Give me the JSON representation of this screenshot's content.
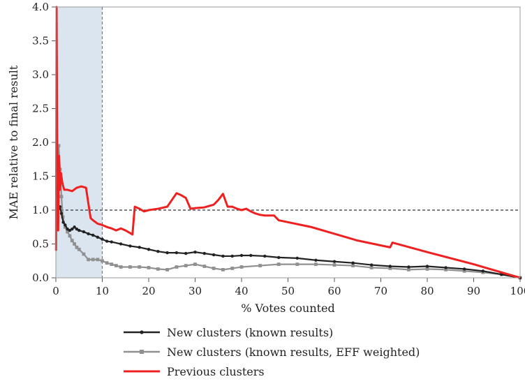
{
  "chart_data": {
    "type": "line",
    "xlabel": "% Votes counted",
    "ylabel": "MAE relative to final result",
    "xlim": [
      0,
      100
    ],
    "ylim": [
      0,
      4.0
    ],
    "x_ticks": [
      0,
      10,
      20,
      30,
      40,
      50,
      60,
      70,
      80,
      90,
      100
    ],
    "y_ticks": [
      0.0,
      0.5,
      1.0,
      1.5,
      2.0,
      2.5,
      3.0,
      3.5,
      4.0
    ],
    "y_tick_labels": [
      "0.0",
      "0.5",
      "1.0",
      "1.5",
      "2.0",
      "2.5",
      "3.0",
      "3.5",
      "4.0"
    ],
    "x_tick_labels": [
      "0",
      "10",
      "20",
      "30",
      "40",
      "50",
      "60",
      "70",
      "80",
      "90",
      "100"
    ],
    "shaded_region": {
      "x_from": 0,
      "x_to": 10
    },
    "reference_line": {
      "y": 1.0,
      "style": "dashed"
    },
    "vertical_reference": {
      "x": 10,
      "style": "dashed"
    },
    "grid": false,
    "legend_position": "bottom",
    "series": [
      {
        "name": "New clusters (known results)",
        "color": "#222222",
        "marker": "circle",
        "x": [
          0.3,
          0.6,
          0.9,
          1.2,
          1.6,
          2.0,
          2.5,
          3.0,
          3.5,
          4.0,
          4.5,
          5.0,
          6.0,
          7.0,
          8.0,
          9.0,
          10.0,
          11.0,
          12.0,
          14.0,
          16.0,
          18.0,
          20.0,
          22.0,
          24.0,
          26.0,
          28.0,
          30.0,
          32.0,
          34.0,
          36.0,
          38.0,
          40.0,
          42.0,
          45.0,
          48.0,
          52.0,
          56.0,
          60.0,
          64.0,
          68.0,
          72.0,
          76.0,
          80.0,
          84.0,
          88.0,
          92.0,
          96.0,
          100.0
        ],
        "values": [
          0.9,
          1.02,
          1.05,
          0.95,
          0.82,
          0.78,
          0.72,
          0.7,
          0.72,
          0.75,
          0.72,
          0.7,
          0.68,
          0.65,
          0.63,
          0.6,
          0.57,
          0.54,
          0.53,
          0.5,
          0.47,
          0.45,
          0.42,
          0.39,
          0.37,
          0.37,
          0.36,
          0.38,
          0.36,
          0.34,
          0.32,
          0.32,
          0.33,
          0.33,
          0.32,
          0.3,
          0.29,
          0.26,
          0.24,
          0.22,
          0.19,
          0.17,
          0.16,
          0.17,
          0.15,
          0.13,
          0.1,
          0.05,
          0.0
        ]
      },
      {
        "name": "New clusters (known results, EFF weighted)",
        "color": "#909090",
        "marker": "square",
        "x": [
          0.3,
          0.6,
          0.9,
          1.2,
          1.5,
          2.0,
          2.5,
          3.0,
          3.5,
          4.0,
          4.5,
          5.0,
          6.0,
          7.0,
          8.0,
          9.0,
          10.0,
          11.0,
          12.0,
          13.0,
          14.0,
          16.0,
          18.0,
          20.0,
          22.0,
          24.0,
          26.0,
          28.0,
          30.0,
          32.0,
          34.0,
          36.0,
          38.0,
          40.0,
          44.0,
          48.0,
          52.0,
          56.0,
          60.0,
          64.0,
          68.0,
          72.0,
          76.0,
          80.0,
          84.0,
          88.0,
          92.0,
          96.0,
          100.0
        ],
        "values": [
          1.7,
          1.95,
          1.6,
          1.2,
          0.9,
          0.75,
          0.68,
          0.62,
          0.55,
          0.5,
          0.45,
          0.42,
          0.35,
          0.27,
          0.27,
          0.27,
          0.25,
          0.22,
          0.2,
          0.18,
          0.16,
          0.16,
          0.16,
          0.15,
          0.13,
          0.12,
          0.16,
          0.18,
          0.2,
          0.17,
          0.14,
          0.12,
          0.14,
          0.16,
          0.18,
          0.2,
          0.2,
          0.2,
          0.19,
          0.18,
          0.15,
          0.14,
          0.12,
          0.13,
          0.12,
          0.1,
          0.08,
          0.05,
          0.0
        ]
      },
      {
        "name": "Previous clusters",
        "color": "#ee2020",
        "marker": "none",
        "x": [
          0.05,
          0.15,
          0.25,
          0.35,
          0.5,
          0.7,
          0.9,
          1.1,
          1.4,
          1.8,
          2.5,
          3.5,
          4.5,
          5.5,
          6.5,
          7.0,
          7.5,
          8.0,
          9.0,
          10.0,
          11.0,
          12.0,
          13.0,
          14.0,
          15.0,
          16.0,
          16.5,
          17.0,
          18.0,
          19.0,
          20.0,
          22.0,
          24.0,
          25.0,
          26.0,
          27.0,
          28.0,
          29.0,
          30.0,
          32.0,
          34.0,
          35.0,
          36.0,
          37.0,
          38.0,
          39.0,
          40.0,
          41.0,
          42.0,
          43.0,
          44.0,
          45.0,
          46.0,
          47.0,
          48.0,
          55.0,
          60.0,
          65.0,
          72.0,
          72.5,
          80.0,
          90.0,
          100.0
        ],
        "values": [
          0.4,
          4.0,
          2.5,
          1.4,
          0.7,
          1.8,
          1.3,
          1.55,
          1.4,
          1.3,
          1.3,
          1.28,
          1.33,
          1.35,
          1.33,
          1.1,
          0.88,
          0.85,
          0.8,
          0.78,
          0.75,
          0.73,
          0.7,
          0.73,
          0.7,
          0.66,
          0.64,
          1.05,
          1.02,
          0.98,
          1.0,
          1.02,
          1.05,
          1.15,
          1.25,
          1.22,
          1.18,
          1.02,
          1.03,
          1.04,
          1.08,
          1.15,
          1.24,
          1.05,
          1.05,
          1.02,
          1.0,
          1.02,
          0.98,
          0.95,
          0.93,
          0.92,
          0.92,
          0.92,
          0.85,
          0.75,
          0.65,
          0.55,
          0.45,
          0.52,
          0.38,
          0.2,
          0.0
        ]
      }
    ]
  }
}
